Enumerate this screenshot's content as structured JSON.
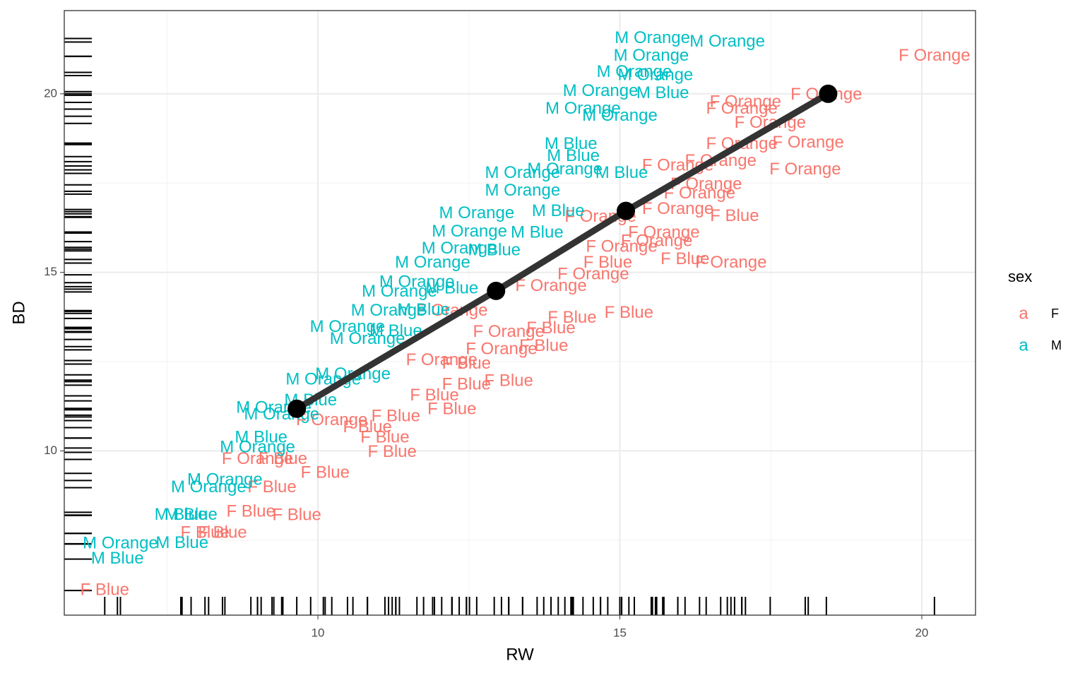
{
  "chart_data": {
    "type": "scatter",
    "x_label": "RW",
    "y_label": "BD",
    "legend_title": "sex",
    "legend_key_glyph": "a",
    "xlim": [
      5.8,
      20.89
    ],
    "ylim": [
      5.4,
      22.33
    ],
    "xticks": [
      10,
      15,
      20
    ],
    "yticks": [
      10,
      15,
      20
    ],
    "xminor": [
      7.5,
      12.5,
      17.5
    ],
    "yminor": [
      7.5,
      12.5,
      17.5
    ],
    "grid": true,
    "rug": true,
    "series": [
      {
        "name": "F",
        "color": "#F8766D",
        "labels": [
          "F Blue",
          "F Blue",
          "F Blue",
          "F Blue",
          "F Blue",
          "F Blue",
          "F Blue",
          "F Blue",
          "F Blue",
          "F Blue",
          "F Blue",
          "F Blue",
          "F Orange",
          "F Orange",
          "F Blue",
          "F Blue",
          "F Blue",
          "F Blue",
          "F Orange",
          "F Blue",
          "F Orange",
          "F Blue",
          "F Orange",
          "F Blue",
          "F Blue",
          "F Blue",
          "F Orange",
          "F Orange",
          "F Orange",
          "F Blue",
          "F Blue",
          "F Orange",
          "F Orange",
          "F Orange",
          "F Orange",
          "F Orange",
          "F Orange",
          "F Blue",
          "F Orange",
          "F Orange",
          "F Orange",
          "F Orange",
          "F Orange",
          "F Orange",
          "F Orange",
          "F Orange",
          "F Orange",
          "F Orange",
          "F Orange",
          "F Orange"
        ],
        "x": [
          6.47,
          8.13,
          8.42,
          8.89,
          9.65,
          9.24,
          10.12,
          9.42,
          11.23,
          11.11,
          10.82,
          11.29,
          9.0,
          10.23,
          12.22,
          11.93,
          12.46,
          13.16,
          12.05,
          12.46,
          13.04,
          13.74,
          13.16,
          13.86,
          14.21,
          15.15,
          12.22,
          13.86,
          14.56,
          14.8,
          16.08,
          16.84,
          15.03,
          15.61,
          15.73,
          14.68,
          15.96,
          16.9,
          16.32,
          16.43,
          15.96,
          16.67,
          18.07,
          18.12,
          17.02,
          17.49,
          17.08,
          17.02,
          18.42,
          20.21
        ],
        "y": [
          6.09,
          7.69,
          7.69,
          8.28,
          8.19,
          8.97,
          9.37,
          9.76,
          9.96,
          10.36,
          10.65,
          10.95,
          9.76,
          10.85,
          11.15,
          11.54,
          11.84,
          11.94,
          12.53,
          12.43,
          12.83,
          12.92,
          13.32,
          13.42,
          13.71,
          13.85,
          13.91,
          14.6,
          14.93,
          15.26,
          15.36,
          15.26,
          15.7,
          15.86,
          16.1,
          16.54,
          16.76,
          16.56,
          17.19,
          17.45,
          17.98,
          18.1,
          17.87,
          18.62,
          18.58,
          19.17,
          19.76,
          19.57,
          19.96,
          21.05
        ]
      },
      {
        "name": "M",
        "color": "#00BFC4",
        "labels": [
          "M Orange",
          "M Blue",
          "M Blue",
          "M Blue",
          "M Blue",
          "M Orange",
          "M Orange",
          "M Orange",
          "M Blue",
          "M Orange",
          "M Orange",
          "M Blue",
          "M Orange",
          "M Orange",
          "M Orange",
          "M Orange",
          "M Orange",
          "M Orange",
          "M Orange",
          "M Orange",
          "M Orange",
          "M Orange",
          "M Orange",
          "M Orange",
          "M Orange",
          "M Orange",
          "M Blue",
          "M Blue",
          "M Orange",
          "M Orange",
          "M Orange",
          "M Blue",
          "M Orange",
          "M Orange",
          "M Orange",
          "M Orange",
          "M Orange",
          "M Blue",
          "M Blue",
          "M Blue",
          "M Blue",
          "M Blue",
          "M Blue",
          "M Blue"
        ],
        "x": [
          6.73,
          6.68,
          7.75,
          7.73,
          7.9,
          8.19,
          8.46,
          9.0,
          9.06,
          9.27,
          9.4,
          9.88,
          10.09,
          10.58,
          10.49,
          10.82,
          11.17,
          11.35,
          11.64,
          11.9,
          12.34,
          12.51,
          12.63,
          13.39,
          13.39,
          14.09,
          14.19,
          14.23,
          14.39,
          15.0,
          14.68,
          15.71,
          15.24,
          15.59,
          15.52,
          15.54,
          16.78,
          13.98,
          13.63,
          12.92,
          12.22,
          11.75,
          11.29,
          15.03
        ],
        "y": [
          7.39,
          6.97,
          7.4,
          8.2,
          8.2,
          8.97,
          9.17,
          10.08,
          10.36,
          11.19,
          11.0,
          11.4,
          11.98,
          12.13,
          13.46,
          13.12,
          13.91,
          14.45,
          14.71,
          15.26,
          15.65,
          16.13,
          16.64,
          17.27,
          17.77,
          17.87,
          18.58,
          18.24,
          19.57,
          19.37,
          20.06,
          20.0,
          20.6,
          20.51,
          21.05,
          21.55,
          21.45,
          16.7,
          16.1,
          15.6,
          14.53,
          13.93,
          13.34,
          17.77
        ]
      }
    ],
    "summary_line": {
      "color": "#333333",
      "point_color": "#000000",
      "x": [
        9.65,
        12.95,
        15.1,
        18.45
      ],
      "y": [
        11.18,
        14.48,
        16.72,
        20.0
      ]
    }
  }
}
